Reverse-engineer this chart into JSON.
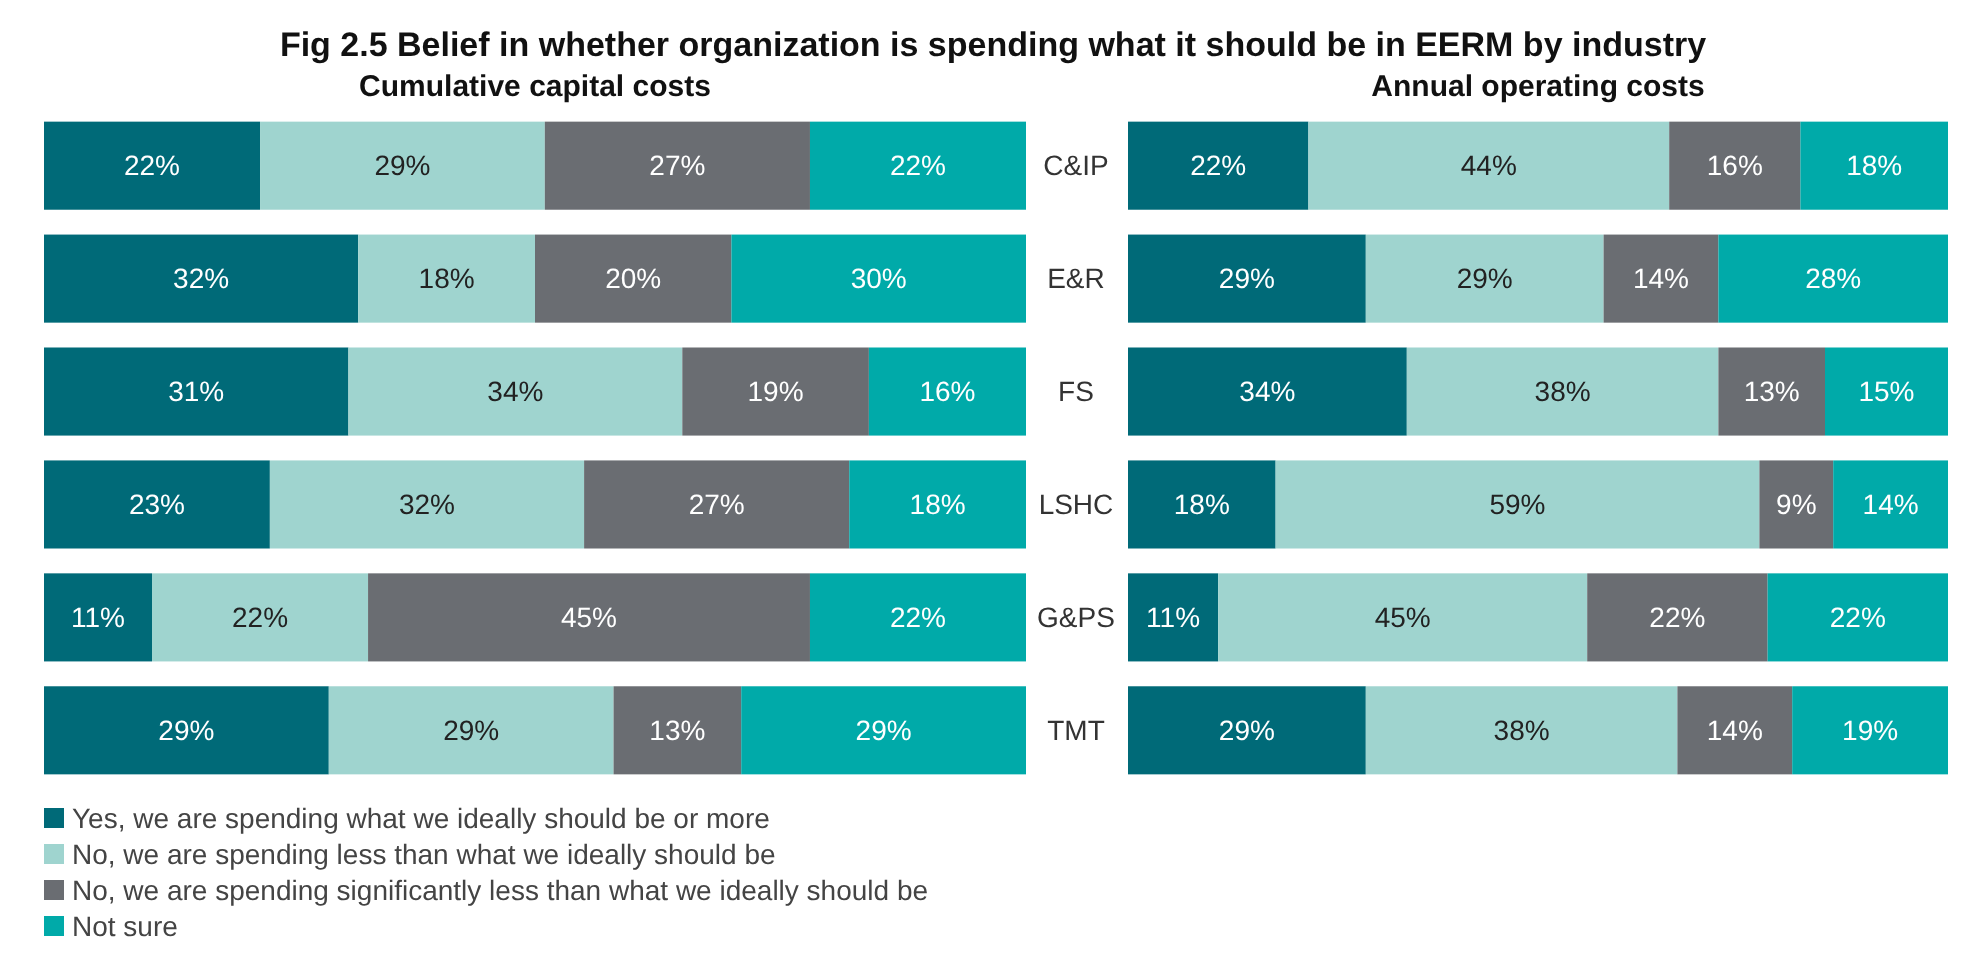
{
  "chart_data": [
    {
      "type": "bar",
      "orientation": "horizontal",
      "stacked": true,
      "title": "Fig 2.5 Belief in whether organization is spending what it should be in EERM by industry",
      "subtitle": "Cumulative capital costs",
      "categories": [
        "C&IP",
        "E&R",
        "FS",
        "LSHC",
        "G&PS",
        "TMT"
      ],
      "legend": "bottom",
      "series": [
        {
          "name": "Yes, we are spending what we ideally should be or more",
          "color": "#006a78",
          "values": [
            22,
            32,
            31,
            23,
            11,
            29
          ],
          "value_labels": [
            "22%",
            "32%",
            "31%",
            "23%",
            "11%",
            "29%"
          ]
        },
        {
          "name": "No, we are spending less than what we ideally should be",
          "color": "#9fd4cf",
          "values": [
            29,
            18,
            34,
            32,
            22,
            29
          ],
          "value_labels": [
            "29%",
            "18%",
            "34%",
            "32%",
            "22%",
            "29%"
          ]
        },
        {
          "name": "No, we are spending significantly less than what we ideally should be",
          "color": "#6a6d72",
          "values": [
            27,
            20,
            19,
            27,
            45,
            13
          ],
          "value_labels": [
            "27%",
            "20%",
            "19%",
            "27%",
            "45%",
            "13%"
          ]
        },
        {
          "name": "Not sure",
          "color": "#00aaa9",
          "values": [
            22,
            30,
            16,
            18,
            22,
            29
          ],
          "value_labels": [
            "22%",
            "30%",
            "16%",
            "18%",
            "22%",
            "29%"
          ]
        }
      ]
    },
    {
      "type": "bar",
      "orientation": "horizontal",
      "stacked": true,
      "title": "Annual operating costs",
      "categories": [
        null,
        null,
        null,
        null,
        null,
        null
      ],
      "series": [
        {
          "color": "#006a78",
          "values": [
            22,
            29,
            34,
            18,
            11,
            29
          ],
          "value_labels": [
            "22%",
            "29%",
            "34%",
            "18%",
            "11%",
            "29%"
          ]
        },
        {
          "color": "#9fd4cf",
          "values": [
            44,
            29,
            38,
            59,
            45,
            38
          ],
          "value_labels": [
            "44%",
            "29%",
            "38%",
            "59%",
            "45%",
            "38%"
          ]
        },
        {
          "color": "#6a6d72",
          "values": [
            16,
            14,
            13,
            9,
            22,
            14
          ],
          "value_labels": [
            "16%",
            "14%",
            "13%",
            "9%",
            "22%",
            "14%"
          ]
        },
        {
          "color": "#00aaa9",
          "values": [
            18,
            28,
            15,
            14,
            22,
            19
          ],
          "value_labels": [
            "18%",
            "28%",
            "15%",
            "14%",
            "22%",
            "19%"
          ]
        }
      ]
    }
  ]
}
